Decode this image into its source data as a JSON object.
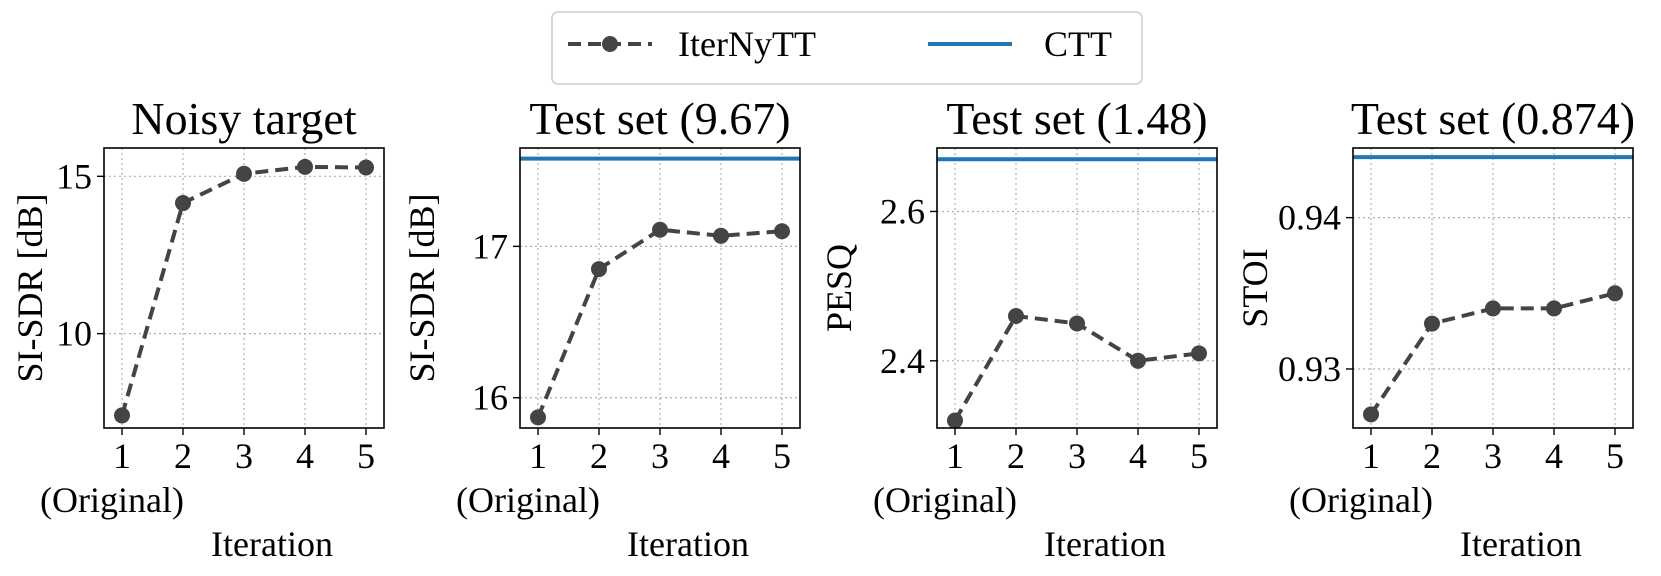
{
  "legend": [
    {
      "label": "IterNyTT",
      "color": "#444444",
      "style": "dashed-marker"
    },
    {
      "label": "CTT",
      "color": "#1f77b4",
      "style": "solid"
    }
  ],
  "chart_data": [
    {
      "type": "line",
      "title": "Noisy target",
      "ylabel": "SI-SDR [dB]",
      "xlabel": "Iteration",
      "x": [
        1,
        2,
        3,
        4,
        5
      ],
      "xticklabels": [
        "1",
        "2",
        "3",
        "4",
        "5"
      ],
      "xsublabel": "(Original)",
      "ylim": [
        7.0,
        15.9
      ],
      "yticks": [
        10,
        15
      ],
      "yticklabels": [
        "10",
        "15"
      ],
      "series": [
        {
          "name": "IterNyTT",
          "values": [
            7.4,
            14.15,
            15.08,
            15.3,
            15.28
          ]
        }
      ],
      "reference": null
    },
    {
      "type": "line",
      "title": "Test set (9.67)",
      "ylabel": "SI-SDR [dB]",
      "xlabel": "Iteration",
      "x": [
        1,
        2,
        3,
        4,
        5
      ],
      "xticklabels": [
        "1",
        "2",
        "3",
        "4",
        "5"
      ],
      "xsublabel": "(Original)",
      "ylim": [
        15.8,
        17.65
      ],
      "yticks": [
        16,
        17
      ],
      "yticklabels": [
        "16",
        "17"
      ],
      "series": [
        {
          "name": "IterNyTT",
          "values": [
            15.87,
            16.85,
            17.11,
            17.07,
            17.1
          ]
        }
      ],
      "reference": {
        "name": "CTT",
        "value": 17.58
      }
    },
    {
      "type": "line",
      "title": "Test set (1.48)",
      "ylabel": "PESQ",
      "xlabel": "Iteration",
      "x": [
        1,
        2,
        3,
        4,
        5
      ],
      "xticklabels": [
        "1",
        "2",
        "3",
        "4",
        "5"
      ],
      "xsublabel": "(Original)",
      "ylim": [
        2.31,
        2.685
      ],
      "yticks": [
        2.4,
        2.6
      ],
      "yticklabels": [
        "2.4",
        "2.6"
      ],
      "series": [
        {
          "name": "IterNyTT",
          "values": [
            2.32,
            2.46,
            2.45,
            2.4,
            2.41
          ]
        }
      ],
      "reference": {
        "name": "CTT",
        "value": 2.67
      }
    },
    {
      "type": "line",
      "title": "Test set (0.874)",
      "ylabel": "STOI",
      "xlabel": "Iteration",
      "x": [
        1,
        2,
        3,
        4,
        5
      ],
      "xticklabels": [
        "1",
        "2",
        "3",
        "4",
        "5"
      ],
      "xsublabel": "(Original)",
      "ylim": [
        0.9261,
        0.9446
      ],
      "yticks": [
        0.93,
        0.94
      ],
      "yticklabels": [
        "0.93",
        "0.94"
      ],
      "series": [
        {
          "name": "IterNyTT",
          "values": [
            0.927,
            0.933,
            0.934,
            0.934,
            0.935
          ]
        }
      ],
      "reference": {
        "name": "CTT",
        "value": 0.944
      }
    }
  ]
}
